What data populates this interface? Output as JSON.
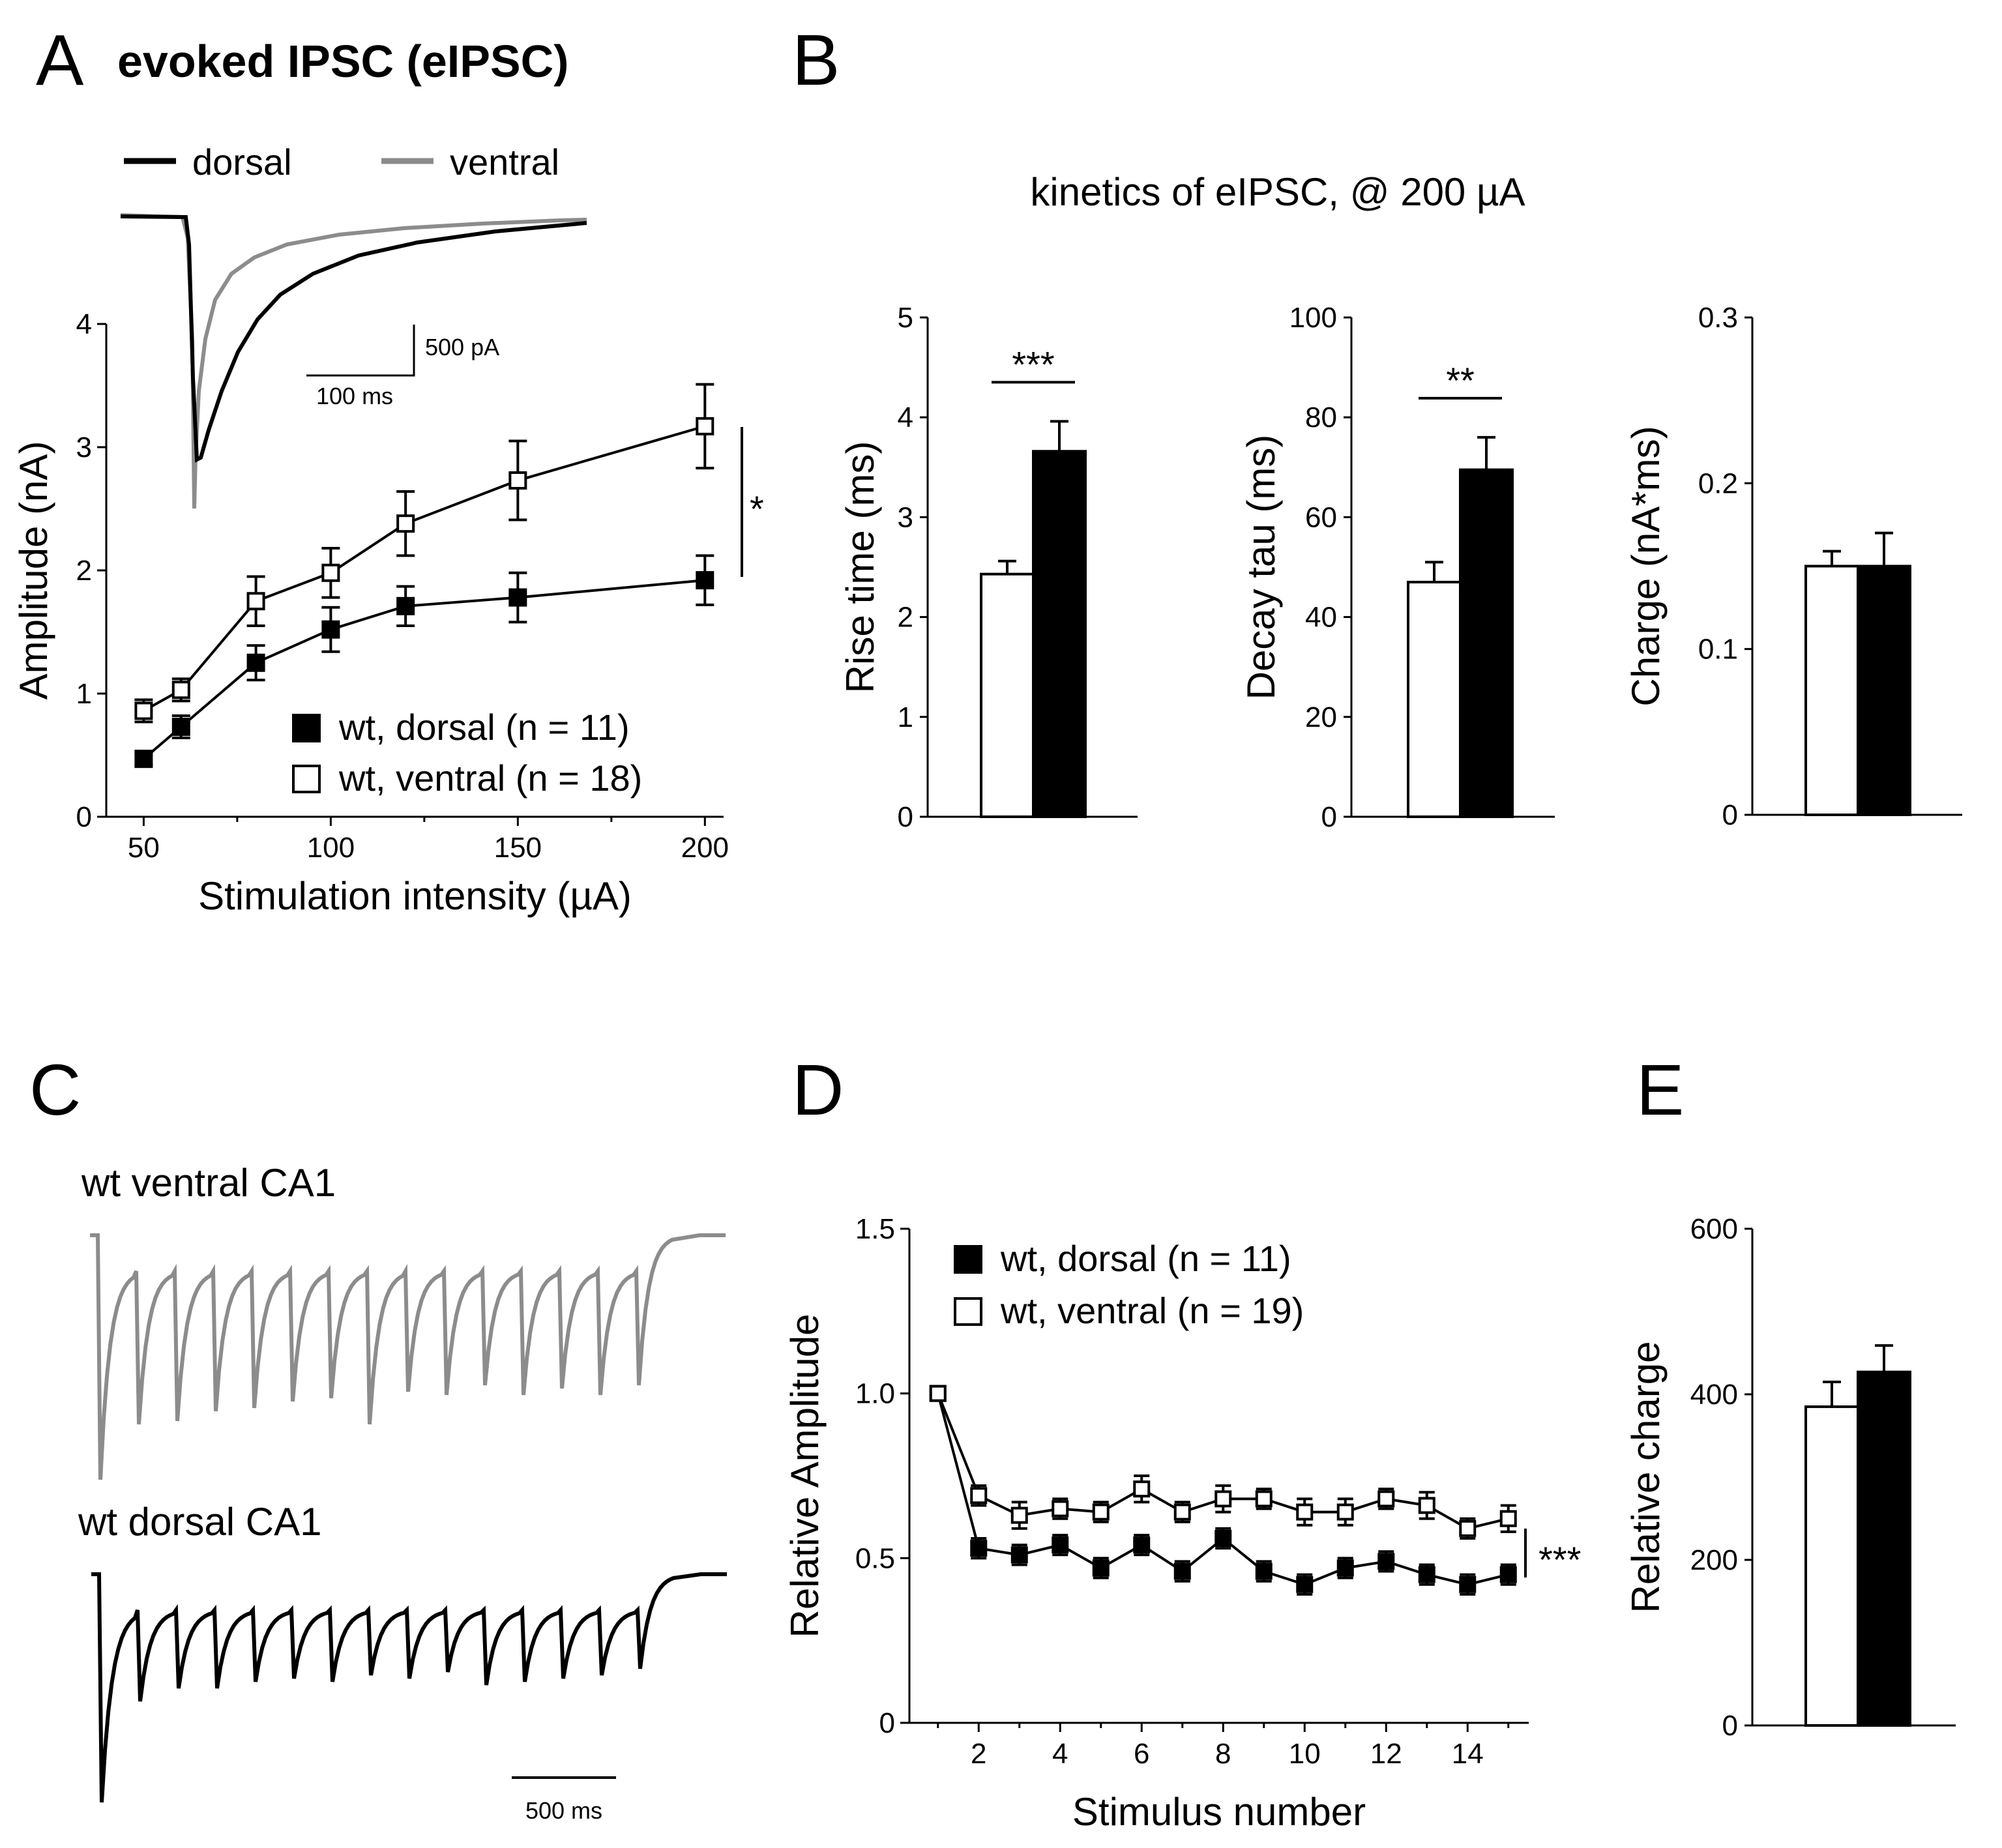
{
  "panels": {
    "A": {
      "letter": "A",
      "title": "evoked IPSC (eIPSC)",
      "trace_legend": [
        {
          "label": "dorsal",
          "color": "#000000"
        },
        {
          "label": "ventral",
          "color": "#8c8c8c"
        }
      ],
      "scale_bar": {
        "amplitude_label": "500 pA",
        "time_label": "100 ms"
      },
      "significance": "*"
    },
    "B": {
      "letter": "B",
      "title": "kinetics of eIPSC, @ 200 µA"
    },
    "C": {
      "letter": "C",
      "trace_labels": {
        "ventral": "wt ventral CA1",
        "dorsal": "wt dorsal CA1"
      },
      "ventral_color": "#8c8c8c",
      "dorsal_color": "#000000",
      "scale_bar": {
        "time_label": "500 ms"
      }
    },
    "D": {
      "letter": "D",
      "significance": "***"
    },
    "E": {
      "letter": "E"
    }
  },
  "chart_data": [
    {
      "id": "A",
      "type": "line",
      "xlabel": "Stimulation intensity (µA)",
      "ylabel": "Amplitude (nA)",
      "xlim": [
        40,
        205
      ],
      "ylim": [
        0,
        4
      ],
      "xticks": [
        50,
        100,
        150,
        200
      ],
      "yticks": [
        0,
        1,
        2,
        3,
        4
      ],
      "x": [
        50,
        60,
        80,
        100,
        120,
        150,
        200
      ],
      "series": [
        {
          "name": "wt, dorsal (n = 11)",
          "marker": "filled-square",
          "values": [
            0.47,
            0.73,
            1.25,
            1.52,
            1.71,
            1.78,
            1.92
          ],
          "errors": [
            0.05,
            0.09,
            0.14,
            0.18,
            0.16,
            0.2,
            0.2
          ]
        },
        {
          "name": "wt, ventral (n = 18)",
          "marker": "open-square",
          "values": [
            0.86,
            1.03,
            1.75,
            1.98,
            2.38,
            2.73,
            3.17
          ],
          "errors": [
            0.09,
            0.09,
            0.2,
            0.2,
            0.26,
            0.32,
            0.34
          ]
        }
      ]
    },
    {
      "id": "B1",
      "type": "bar",
      "ylabel": "Rise time (ms)",
      "ylim": [
        0,
        5
      ],
      "yticks": [
        0,
        1,
        2,
        3,
        4,
        5
      ],
      "values": [
        2.43,
        3.66
      ],
      "errors": [
        0.13,
        0.3
      ],
      "fills": [
        "#ffffff",
        "#000000"
      ],
      "significance": "***"
    },
    {
      "id": "B2",
      "type": "bar",
      "ylabel": "Decay tau (ms)",
      "ylim": [
        0,
        100
      ],
      "yticks": [
        0,
        20,
        40,
        60,
        80,
        100
      ],
      "values": [
        47,
        69.5
      ],
      "errors": [
        4,
        6.5
      ],
      "fills": [
        "#ffffff",
        "#000000"
      ],
      "significance": "**"
    },
    {
      "id": "B3",
      "type": "bar",
      "ylabel": "Charge (nA*ms)",
      "ylim": [
        0,
        0.3
      ],
      "yticks": [
        0,
        0.1,
        0.2,
        0.3
      ],
      "values": [
        0.15,
        0.15
      ],
      "errors": [
        0.009,
        0.02
      ],
      "fills": [
        "#ffffff",
        "#000000"
      ]
    },
    {
      "id": "D",
      "type": "line",
      "xlabel": "Stimulus number",
      "ylabel": "Relative Amplitude",
      "xlim": [
        0.3,
        15.5
      ],
      "ylim": [
        0,
        1.5
      ],
      "xticks": [
        2,
        4,
        6,
        8,
        10,
        12,
        14
      ],
      "yticks": [
        0,
        0.5,
        1.0,
        1.5
      ],
      "ytick_labels": [
        "0",
        "0.5",
        "1.0",
        "1.5"
      ],
      "x": [
        1,
        2,
        3,
        4,
        5,
        6,
        7,
        8,
        9,
        10,
        11,
        12,
        13,
        14,
        15
      ],
      "series": [
        {
          "name": "wt, dorsal (n = 11)",
          "marker": "filled-square",
          "values": [
            1.0,
            0.53,
            0.51,
            0.54,
            0.47,
            0.54,
            0.46,
            0.56,
            0.46,
            0.42,
            0.47,
            0.49,
            0.45,
            0.42,
            0.45
          ],
          "errors": [
            0,
            0.03,
            0.03,
            0.03,
            0.03,
            0.03,
            0.03,
            0.03,
            0.03,
            0.03,
            0.03,
            0.03,
            0.03,
            0.03,
            0.03
          ]
        },
        {
          "name": "wt, ventral (n = 19)",
          "marker": "open-square",
          "values": [
            1.0,
            0.69,
            0.63,
            0.65,
            0.64,
            0.71,
            0.64,
            0.68,
            0.68,
            0.64,
            0.64,
            0.68,
            0.66,
            0.59,
            0.62
          ],
          "errors": [
            0,
            0.03,
            0.04,
            0.03,
            0.03,
            0.04,
            0.03,
            0.04,
            0.03,
            0.04,
            0.04,
            0.03,
            0.04,
            0.03,
            0.04
          ]
        }
      ]
    },
    {
      "id": "E",
      "type": "bar",
      "ylabel": "Relative charge",
      "ylim": [
        0,
        600
      ],
      "yticks": [
        0,
        200,
        400,
        600
      ],
      "values": [
        385,
        427
      ],
      "errors": [
        30,
        32
      ],
      "fills": [
        "#ffffff",
        "#000000"
      ]
    }
  ]
}
